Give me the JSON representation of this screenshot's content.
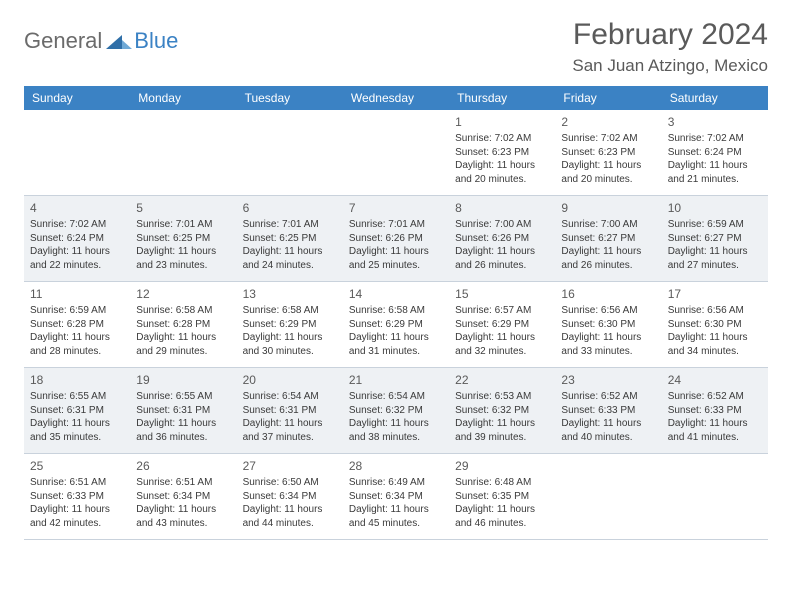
{
  "brand": {
    "general": "General",
    "blue": "Blue"
  },
  "title": "February 2024",
  "location": "San Juan Atzingo, Mexico",
  "colors": {
    "header_bg": "#3b82c4",
    "header_text": "#ffffff",
    "border": "#c9d2dc",
    "shade": "#eef1f4"
  },
  "typography": {
    "title_fontsize": 30,
    "location_fontsize": 17,
    "header_fontsize": 12,
    "cell_fontsize": 10
  },
  "calendar": {
    "type": "table",
    "day_headers": [
      "Sunday",
      "Monday",
      "Tuesday",
      "Wednesday",
      "Thursday",
      "Friday",
      "Saturday"
    ],
    "first_weekday_index": 4,
    "days": [
      {
        "n": 1,
        "sunrise": "7:02 AM",
        "sunset": "6:23 PM",
        "daylight": "11 hours and 20 minutes."
      },
      {
        "n": 2,
        "sunrise": "7:02 AM",
        "sunset": "6:23 PM",
        "daylight": "11 hours and 20 minutes."
      },
      {
        "n": 3,
        "sunrise": "7:02 AM",
        "sunset": "6:24 PM",
        "daylight": "11 hours and 21 minutes."
      },
      {
        "n": 4,
        "sunrise": "7:02 AM",
        "sunset": "6:24 PM",
        "daylight": "11 hours and 22 minutes."
      },
      {
        "n": 5,
        "sunrise": "7:01 AM",
        "sunset": "6:25 PM",
        "daylight": "11 hours and 23 minutes."
      },
      {
        "n": 6,
        "sunrise": "7:01 AM",
        "sunset": "6:25 PM",
        "daylight": "11 hours and 24 minutes."
      },
      {
        "n": 7,
        "sunrise": "7:01 AM",
        "sunset": "6:26 PM",
        "daylight": "11 hours and 25 minutes."
      },
      {
        "n": 8,
        "sunrise": "7:00 AM",
        "sunset": "6:26 PM",
        "daylight": "11 hours and 26 minutes."
      },
      {
        "n": 9,
        "sunrise": "7:00 AM",
        "sunset": "6:27 PM",
        "daylight": "11 hours and 26 minutes."
      },
      {
        "n": 10,
        "sunrise": "6:59 AM",
        "sunset": "6:27 PM",
        "daylight": "11 hours and 27 minutes."
      },
      {
        "n": 11,
        "sunrise": "6:59 AM",
        "sunset": "6:28 PM",
        "daylight": "11 hours and 28 minutes."
      },
      {
        "n": 12,
        "sunrise": "6:58 AM",
        "sunset": "6:28 PM",
        "daylight": "11 hours and 29 minutes."
      },
      {
        "n": 13,
        "sunrise": "6:58 AM",
        "sunset": "6:29 PM",
        "daylight": "11 hours and 30 minutes."
      },
      {
        "n": 14,
        "sunrise": "6:58 AM",
        "sunset": "6:29 PM",
        "daylight": "11 hours and 31 minutes."
      },
      {
        "n": 15,
        "sunrise": "6:57 AM",
        "sunset": "6:29 PM",
        "daylight": "11 hours and 32 minutes."
      },
      {
        "n": 16,
        "sunrise": "6:56 AM",
        "sunset": "6:30 PM",
        "daylight": "11 hours and 33 minutes."
      },
      {
        "n": 17,
        "sunrise": "6:56 AM",
        "sunset": "6:30 PM",
        "daylight": "11 hours and 34 minutes."
      },
      {
        "n": 18,
        "sunrise": "6:55 AM",
        "sunset": "6:31 PM",
        "daylight": "11 hours and 35 minutes."
      },
      {
        "n": 19,
        "sunrise": "6:55 AM",
        "sunset": "6:31 PM",
        "daylight": "11 hours and 36 minutes."
      },
      {
        "n": 20,
        "sunrise": "6:54 AM",
        "sunset": "6:31 PM",
        "daylight": "11 hours and 37 minutes."
      },
      {
        "n": 21,
        "sunrise": "6:54 AM",
        "sunset": "6:32 PM",
        "daylight": "11 hours and 38 minutes."
      },
      {
        "n": 22,
        "sunrise": "6:53 AM",
        "sunset": "6:32 PM",
        "daylight": "11 hours and 39 minutes."
      },
      {
        "n": 23,
        "sunrise": "6:52 AM",
        "sunset": "6:33 PM",
        "daylight": "11 hours and 40 minutes."
      },
      {
        "n": 24,
        "sunrise": "6:52 AM",
        "sunset": "6:33 PM",
        "daylight": "11 hours and 41 minutes."
      },
      {
        "n": 25,
        "sunrise": "6:51 AM",
        "sunset": "6:33 PM",
        "daylight": "11 hours and 42 minutes."
      },
      {
        "n": 26,
        "sunrise": "6:51 AM",
        "sunset": "6:34 PM",
        "daylight": "11 hours and 43 minutes."
      },
      {
        "n": 27,
        "sunrise": "6:50 AM",
        "sunset": "6:34 PM",
        "daylight": "11 hours and 44 minutes."
      },
      {
        "n": 28,
        "sunrise": "6:49 AM",
        "sunset": "6:34 PM",
        "daylight": "11 hours and 45 minutes."
      },
      {
        "n": 29,
        "sunrise": "6:48 AM",
        "sunset": "6:35 PM",
        "daylight": "11 hours and 46 minutes."
      }
    ],
    "labels": {
      "sunrise": "Sunrise:",
      "sunset": "Sunset:",
      "daylight": "Daylight:"
    }
  }
}
